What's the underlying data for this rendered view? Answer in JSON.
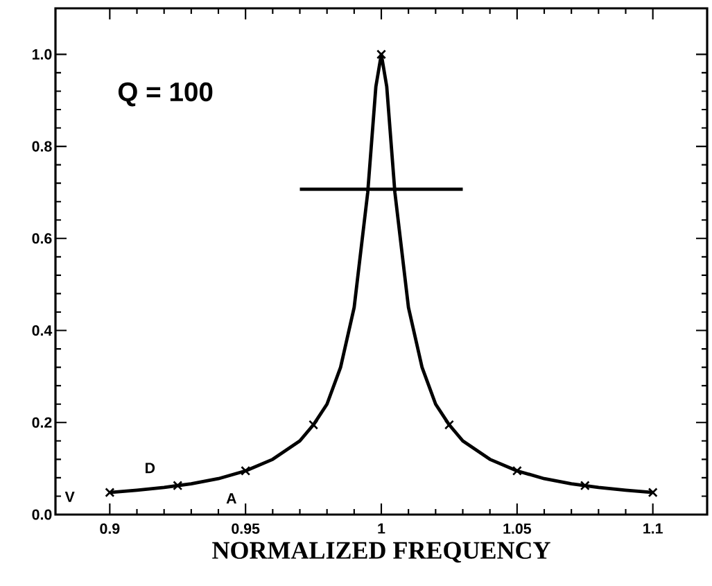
{
  "chart_data": {
    "type": "line",
    "xlabel": "NORMALIZED FREQUENCY",
    "annotations": [
      "Q = 100",
      "V",
      "D",
      "A"
    ],
    "xlim": [
      0.88,
      1.12
    ],
    "ylim": [
      0,
      1.1
    ],
    "xticks": [
      0.9,
      0.95,
      1,
      1.05,
      1.1
    ],
    "yticks": [
      {
        "value": 0,
        "label": "0.0"
      },
      0.2,
      0.4,
      0.6,
      0.8,
      {
        "value": 1,
        "label": "1.0"
      }
    ],
    "grid": false,
    "series": [
      {
        "color": "#000000",
        "x": [
          0.9,
          0.91,
          0.92,
          0.93,
          0.94,
          0.95,
          0.96,
          0.97,
          0.975,
          0.98,
          0.985,
          0.99,
          0.995,
          0.998,
          1,
          1.002,
          1.005,
          1.01,
          1.015,
          1.02,
          1.025,
          1.03,
          1.04,
          1.05,
          1.06,
          1.07,
          1.08,
          1.09,
          1.1
        ],
        "values": [
          0.048,
          0.053,
          0.059,
          0.067,
          0.078,
          0.095,
          0.12,
          0.16,
          0.195,
          0.24,
          0.32,
          0.45,
          0.7,
          0.93,
          1,
          0.93,
          0.7,
          0.45,
          0.32,
          0.24,
          0.195,
          0.16,
          0.12,
          0.095,
          0.078,
          0.067,
          0.059,
          0.053,
          0.048
        ]
      },
      {
        "type": "scatter",
        "marker": "cross",
        "color": "#000000",
        "x": [
          0.9,
          0.925,
          0.95,
          0.975,
          1,
          1.025,
          1.05,
          1.075,
          1.1
        ],
        "values": [
          0.048,
          0.063,
          0.095,
          0.195,
          1,
          0.195,
          0.095,
          0.063,
          0.048
        ]
      },
      {
        "color": "#000000",
        "x": [
          0.97,
          1.03
        ],
        "values": [
          0.707,
          0.707
        ]
      }
    ]
  }
}
